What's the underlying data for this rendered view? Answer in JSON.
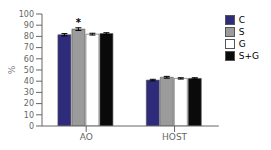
{
  "chart_data": {
    "type": "bar",
    "categories": [
      "AO",
      "HOST"
    ],
    "series": [
      {
        "name": "C",
        "color": "#2e2b7a",
        "values": [
          81.5,
          41.0
        ],
        "errors": [
          1.0,
          0.7
        ]
      },
      {
        "name": "S",
        "color": "#9b9b9b",
        "values": [
          86.5,
          43.5
        ],
        "errors": [
          1.2,
          0.8
        ]
      },
      {
        "name": "G",
        "color": "#ffffff",
        "values": [
          82.0,
          42.5
        ],
        "errors": [
          0.8,
          0.6
        ]
      },
      {
        "name": "S+G",
        "color": "#0a0a0a",
        "values": [
          82.5,
          42.5
        ],
        "errors": [
          0.8,
          0.6
        ]
      }
    ],
    "ylabel": "%",
    "ylim": [
      0,
      100
    ],
    "yticks": [
      0,
      10,
      20,
      30,
      40,
      50,
      60,
      70,
      80,
      90,
      100
    ],
    "legend": "upper right",
    "grid": false,
    "annotations": [
      {
        "text": "*",
        "category": "AO",
        "series": "S"
      }
    ]
  }
}
